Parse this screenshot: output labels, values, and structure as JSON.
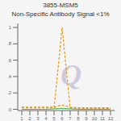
{
  "chart_data": {
    "type": "line",
    "title": "3855-MSM5",
    "subtitle": "Non-Specific Antibody Signal <1%",
    "x": [
      1,
      2,
      3,
      4,
      5,
      5.5,
      6,
      6.5,
      7,
      8,
      9,
      10,
      11,
      12
    ],
    "series": [
      {
        "color": "#E8960A",
        "line_style": "dashed",
        "values": [
          0.018,
          0.018,
          0.018,
          0.018,
          0.018,
          0.5,
          1.0,
          0.5,
          0.018,
          0.012,
          0.01,
          0.01,
          0.01,
          0.01
        ]
      },
      {
        "color": "#E8960A",
        "line_style": "dashed",
        "values": [
          0.025,
          0.025,
          0.025,
          0.025,
          0.025,
          0.04,
          0.05,
          0.04,
          0.025,
          0.02,
          0.018,
          0.018,
          0.018,
          0.018
        ]
      },
      {
        "color": "#5CB85C",
        "line_style": "solid",
        "values": [
          0.0,
          0.0,
          0.0,
          0.0,
          0.005,
          0.008,
          0.012,
          0.008,
          0.005,
          0.0,
          0.0,
          0.0,
          0.0,
          0.0
        ]
      }
    ],
    "xlim": [
      0.5,
      12.5
    ],
    "ylim": [
      -0.015,
      1.05
    ],
    "xticks": [
      1,
      2,
      3,
      4,
      5,
      6,
      7,
      8,
      9,
      10,
      11,
      12
    ],
    "yticks": [
      0,
      {
        "value": 0.2,
        "label": ".2"
      },
      {
        "value": 0.4,
        "label": ".4"
      },
      {
        "value": 0.6,
        "label": ".6"
      },
      {
        "value": 0.8,
        "label": ".8"
      },
      1
    ],
    "grid": false,
    "annotations": [
      {
        "text": "Q",
        "color": "#CCCCDD"
      }
    ]
  }
}
